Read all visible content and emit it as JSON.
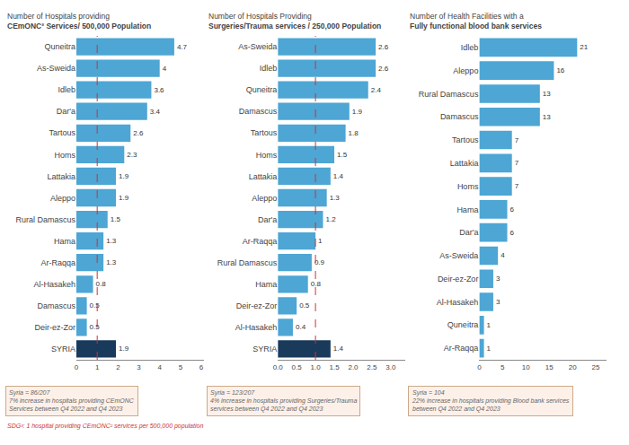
{
  "chart_data": [
    {
      "type": "bar",
      "orientation": "horizontal",
      "title": "Number of Hospitals providing",
      "subtitle": "CEmONC² Services/ 500,000 Population",
      "categories": [
        "Quneitra",
        "As-Sweida",
        "Idleb",
        "Dar'a",
        "Tartous",
        "Homs",
        "Lattakia",
        "Aleppo",
        "Rural Damascus",
        "Hama",
        "Ar-Raqqa",
        "Al-Hasakeh",
        "Damascus",
        "Deir-ez-Zor",
        "SYRIA"
      ],
      "values": [
        4.7,
        4,
        3.6,
        3.4,
        2.6,
        2.3,
        1.9,
        1.9,
        1.5,
        1.3,
        1.3,
        0.8,
        0.5,
        0.5,
        1.9
      ],
      "colors": [
        "#4da6d4",
        "#4da6d4",
        "#4da6d4",
        "#4da6d4",
        "#4da6d4",
        "#4da6d4",
        "#4da6d4",
        "#4da6d4",
        "#4da6d4",
        "#4da6d4",
        "#4da6d4",
        "#4da6d4",
        "#4da6d4",
        "#4da6d4",
        "#1a3a5c"
      ],
      "reference_line": 1.0,
      "xlim": [
        0,
        6.11
      ],
      "xticks": [
        0,
        1,
        2,
        3,
        4,
        5,
        6
      ],
      "grid": false,
      "data_labels": true,
      "annotations": [
        "Syria = 86/207\n7% increase in hospitals providing CEmONC\nServices between Q4 2022 and Q4 2023",
        "SDG³: 1 hospital providing CEmONC² services per 500,000 population"
      ]
    },
    {
      "type": "bar",
      "orientation": "horizontal",
      "title": "Number of Hospitals Providing",
      "subtitle": "Surgeries/Trauma services / 250,000 Population",
      "categories": [
        "As-Sweida",
        "Idleb",
        "Quneitra",
        "Damascus",
        "Tartous",
        "Homs",
        "Lattakia",
        "Aleppo",
        "Dar'a",
        "Ar-Raqqa",
        "Rural Damascus",
        "Hama",
        "Deir-ez-Zor",
        "Al-Hasakeh",
        "SYRIA"
      ],
      "values": [
        2.6,
        2.6,
        2.4,
        1.9,
        1.8,
        1.5,
        1.4,
        1.3,
        1.2,
        1,
        0.9,
        0.8,
        0.5,
        0.4,
        1.4
      ],
      "colors": [
        "#4da6d4",
        "#4da6d4",
        "#4da6d4",
        "#4da6d4",
        "#4da6d4",
        "#4da6d4",
        "#4da6d4",
        "#4da6d4",
        "#4da6d4",
        "#4da6d4",
        "#4da6d4",
        "#4da6d4",
        "#4da6d4",
        "#4da6d4",
        "#1a3a5c"
      ],
      "reference_line": 1.0,
      "xlim": [
        0,
        3.38
      ],
      "xticks": [
        {
          "value": 0,
          "label": "0.0"
        },
        {
          "value": 0.5,
          "label": "0.5"
        },
        {
          "value": 1,
          "label": "1.0"
        },
        {
          "value": 1.5,
          "label": "1.5"
        },
        {
          "value": 2,
          "label": "2.0"
        },
        {
          "value": 2.5,
          "label": "2.5"
        },
        {
          "value": 3,
          "label": "3.0"
        }
      ],
      "grid": false,
      "data_labels": true,
      "annotations": [
        "Syria = 123/207\n4% increase in hospitals providing Surgeries/Trauma\nservices between Q4 2022 and Q4 2023"
      ]
    },
    {
      "type": "bar",
      "orientation": "horizontal",
      "title": "Number of Health Facilities with a",
      "subtitle": "Fully functional blood bank services",
      "categories": [
        "Idleb",
        "Aleppo",
        "Rural Damascus",
        "Damascus",
        "Tartous",
        "Lattakia",
        "Homs",
        "Hama",
        "Dar'a",
        "As-Sweida",
        "Deir-ez-Zor",
        "Al-Hasakeh",
        "Quneitra",
        "Ar-Raqqa"
      ],
      "values": [
        21,
        16,
        13,
        13,
        7,
        7,
        7,
        6,
        6,
        4,
        3,
        3,
        1,
        1
      ],
      "color": "#4da6d4",
      "xlim": [
        0,
        27.3
      ],
      "xticks": [
        0,
        5,
        10,
        15,
        20,
        25
      ],
      "grid": false,
      "data_labels": true,
      "annotations": [
        "Syria = 104\n22% increase in hospitals providing Blood bank services\nbetween Q4 2022 and Q4 2023"
      ]
    }
  ]
}
